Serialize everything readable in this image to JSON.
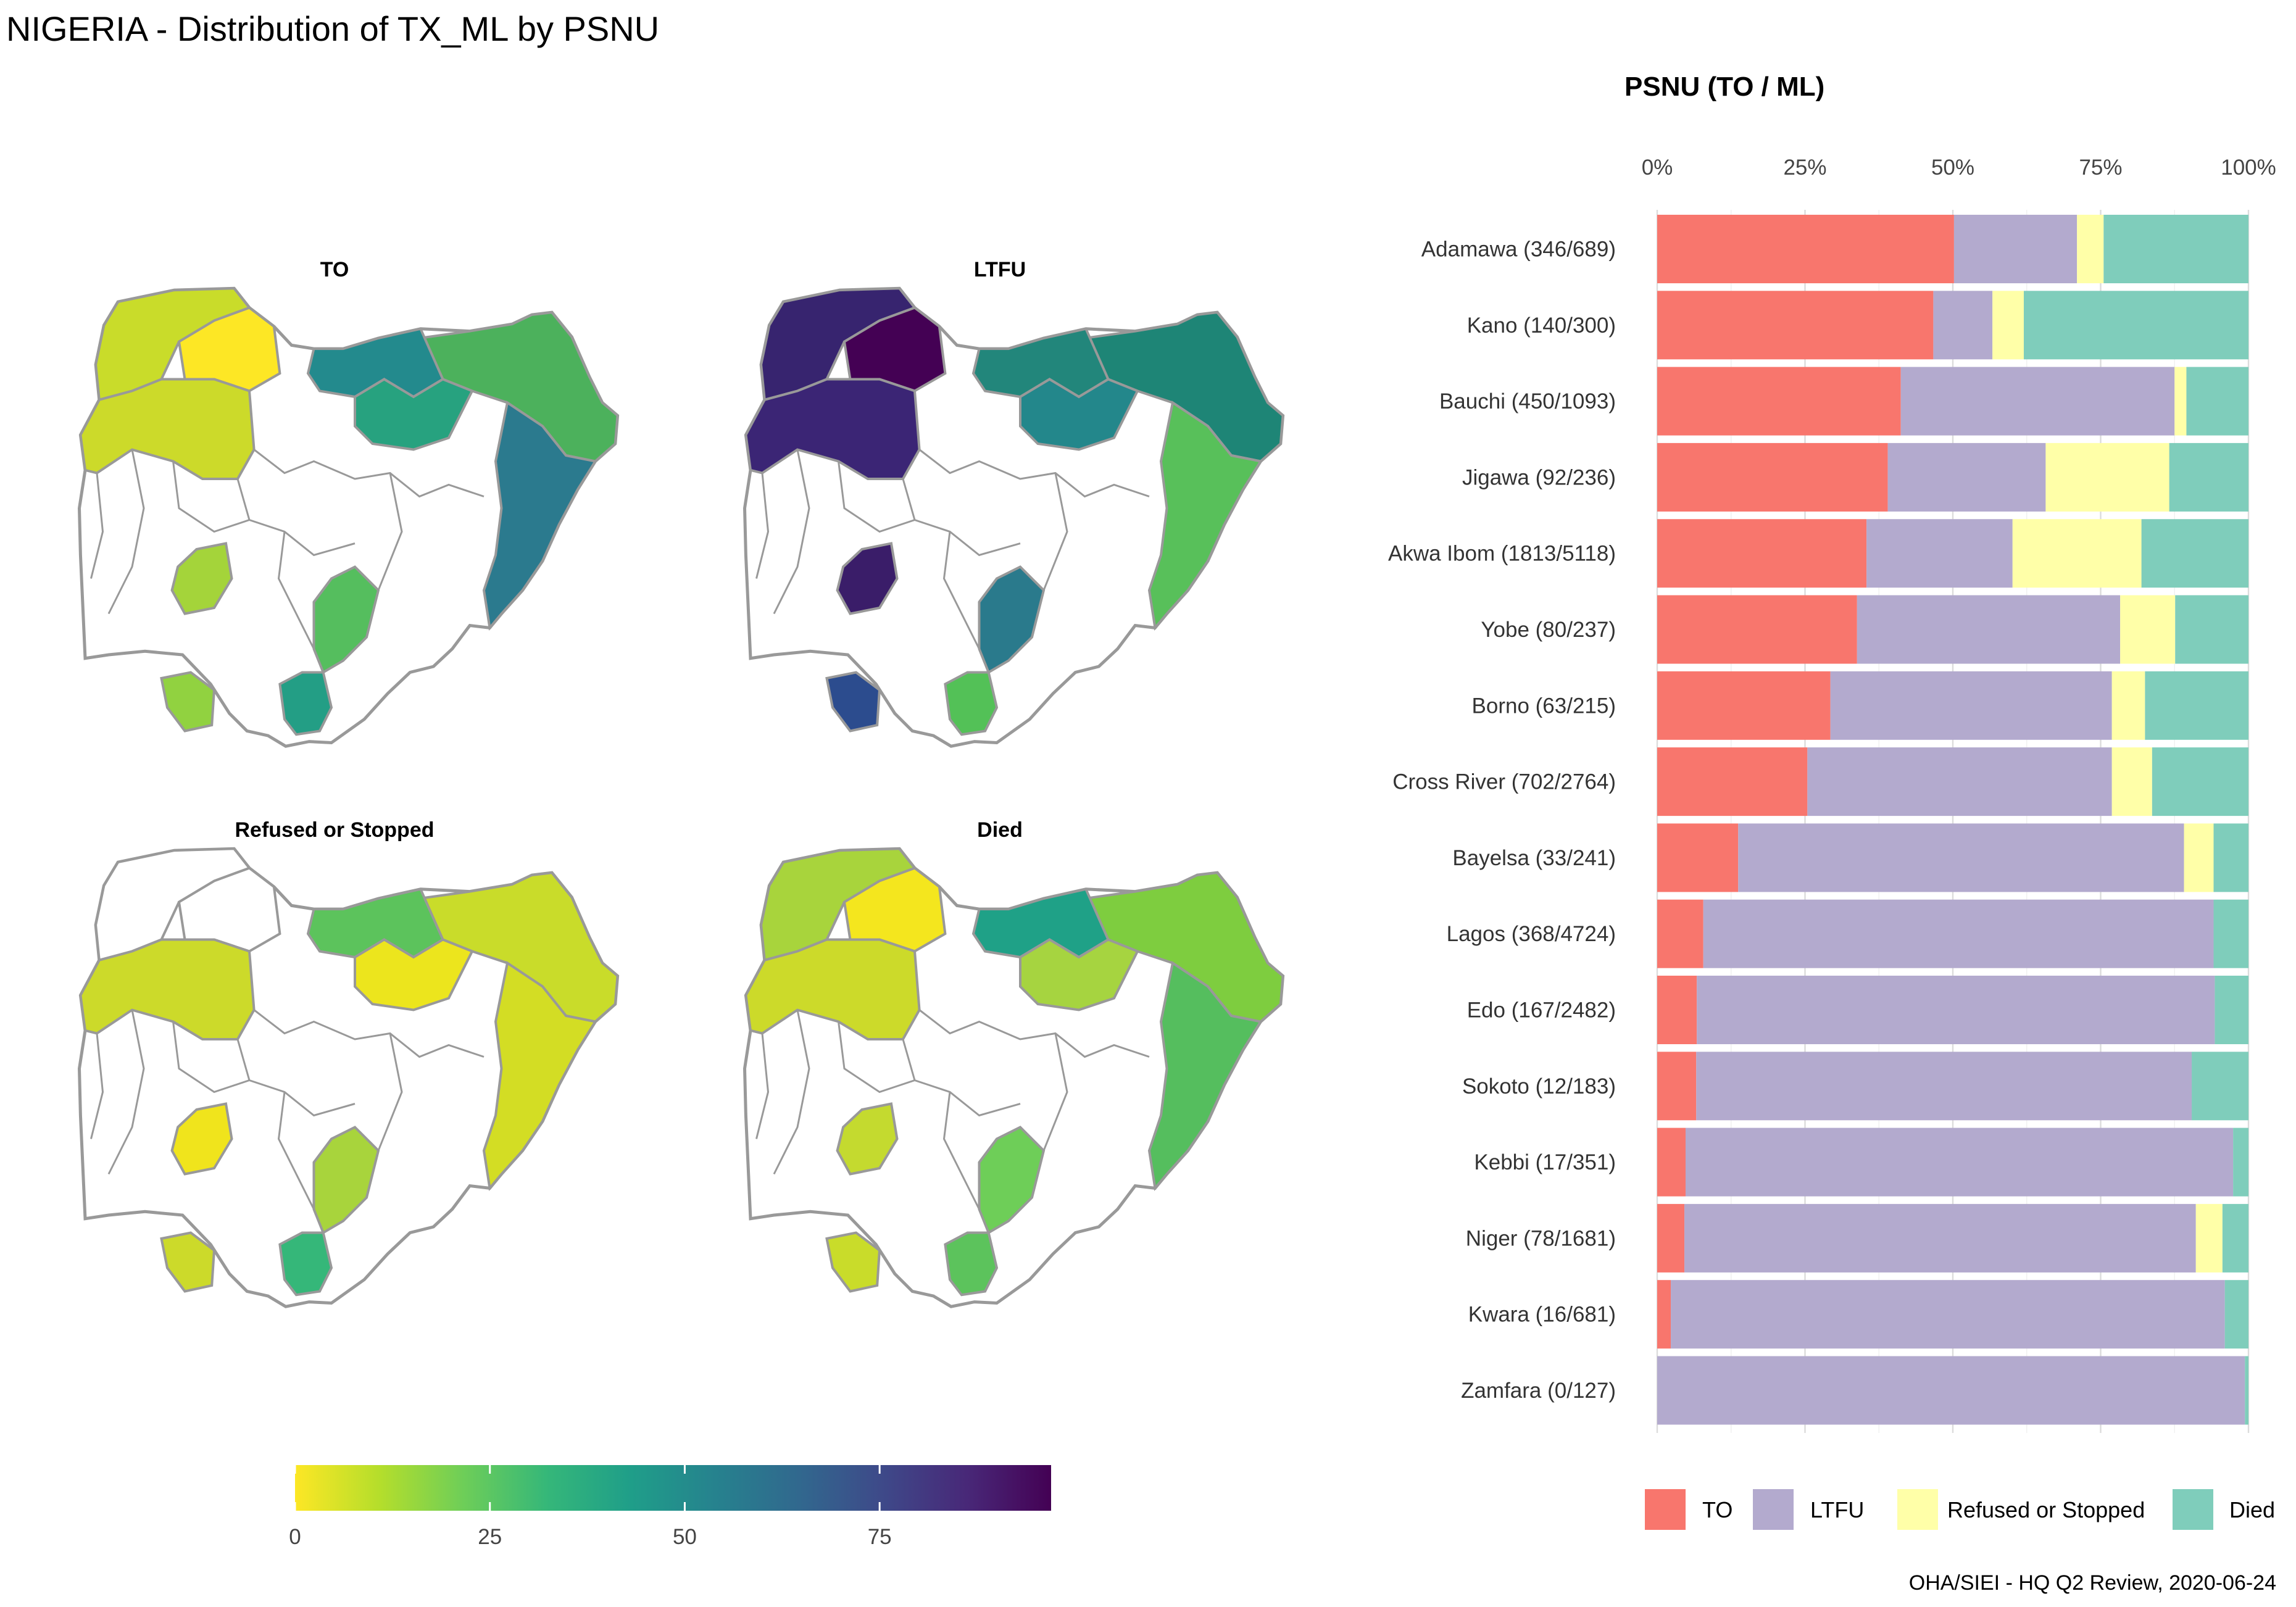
{
  "title": "NIGERIA - Distribution of TX_ML by PSNU",
  "caption": "OHA/SIEI - HQ Q2 Review, 2020-06-24",
  "maps": {
    "panels": [
      {
        "label": "TO"
      },
      {
        "label": "LTFU"
      },
      {
        "label": "Refused or Stopped"
      },
      {
        "label": "Died"
      }
    ],
    "colorbar": {
      "ticks": [
        "0",
        "25",
        "50",
        "75"
      ],
      "range": [
        0,
        97
      ],
      "palette": [
        "#FDE725",
        "#B5DE2B",
        "#6ECE58",
        "#35B779",
        "#1F9E89",
        "#26828E",
        "#31688E",
        "#3E4989",
        "#482878",
        "#440154"
      ]
    },
    "outline_color": "#999999"
  },
  "chart_data": {
    "type": "bar",
    "orientation": "horizontal",
    "stacked": "percent",
    "title": "PSNU (TO / ML)",
    "xlim": [
      0,
      100
    ],
    "x_ticks": [
      "0%",
      "25%",
      "50%",
      "75%",
      "100%"
    ],
    "categories": [
      "Adamawa (346/689)",
      "Kano (140/300)",
      "Bauchi (450/1093)",
      "Jigawa (92/236)",
      "Akwa Ibom (1813/5118)",
      "Yobe (80/237)",
      "Borno (63/215)",
      "Cross River (702/2764)",
      "Bayelsa (33/241)",
      "Lagos (368/4724)",
      "Edo (167/2482)",
      "Sokoto (12/183)",
      "Kebbi (17/351)",
      "Niger (78/1681)",
      "Kwara (16/681)",
      "Zamfara (0/127)"
    ],
    "series": [
      {
        "name": "TO",
        "color": "#F8766D",
        "values": [
          50.2,
          46.7,
          41.2,
          39.0,
          35.4,
          33.8,
          29.3,
          25.4,
          13.7,
          7.8,
          6.7,
          6.6,
          4.8,
          4.6,
          2.3,
          0.0
        ]
      },
      {
        "name": "LTFU",
        "color": "#B3AACE",
        "values": [
          20.8,
          10.0,
          46.3,
          26.7,
          24.7,
          44.5,
          47.6,
          51.5,
          75.4,
          86.3,
          87.6,
          83.8,
          92.6,
          86.5,
          93.7,
          99.4
        ]
      },
      {
        "name": "Refused or Stopped",
        "color": "#FFFFA8",
        "values": [
          4.5,
          5.3,
          2.0,
          20.9,
          21.8,
          9.3,
          5.6,
          6.8,
          5.0,
          0.0,
          0.0,
          0.0,
          0.0,
          4.5,
          0.0,
          0.0
        ]
      },
      {
        "name": "Died",
        "color": "#7FCDBB",
        "values": [
          24.5,
          38.0,
          10.5,
          13.4,
          18.1,
          12.4,
          17.5,
          16.3,
          5.9,
          5.9,
          5.7,
          9.6,
          2.6,
          4.4,
          4.0,
          0.6
        ]
      }
    ],
    "legend_position": "bottom",
    "grid": true
  }
}
